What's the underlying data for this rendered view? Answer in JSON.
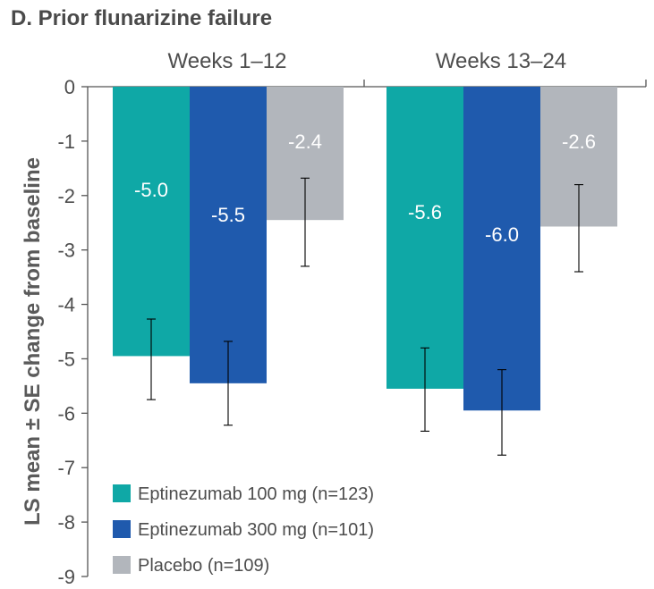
{
  "chart_data": {
    "type": "bar",
    "title": "D.  Prior flunarizine failure",
    "ylabel": "LS mean ± SE change from baseline",
    "categories": [
      "Weeks  1–12",
      "Weeks  13–24"
    ],
    "ylim": [
      -9,
      0
    ],
    "yticks": [
      "0",
      "-1",
      "-2",
      "-3",
      "-4",
      "-5",
      "-6",
      "-7",
      "-8",
      "-9"
    ],
    "series": [
      {
        "name": "Eptinezumab 100 mg (n=123)",
        "color": "#0fa8a6",
        "values": [
          -4.95,
          -5.55
        ],
        "labels": [
          "-5.0",
          "-5.6"
        ],
        "err_low": [
          -5.75,
          -6.33
        ],
        "err_high": [
          -4.27,
          -4.8
        ],
        "label_color": "#ffffff"
      },
      {
        "name": "Eptinezumab 300 mg (n=101)",
        "color": "#1f5aad",
        "values": [
          -5.45,
          -5.95
        ],
        "labels": [
          "-5.5",
          "-6.0"
        ],
        "err_low": [
          -6.22,
          -6.77
        ],
        "err_high": [
          -4.68,
          -5.2
        ],
        "label_color": "#ffffff"
      },
      {
        "name": "Placebo (n=109)",
        "color": "#b2b6bc",
        "values": [
          -2.45,
          -2.57
        ],
        "labels": [
          "-2.4",
          "-2.6"
        ],
        "err_low": [
          -3.3,
          -3.4
        ],
        "err_high": [
          -1.68,
          -1.8
        ],
        "label_color": "#ffffff"
      }
    ],
    "legend_position": "bottom-left",
    "grid": false
  }
}
